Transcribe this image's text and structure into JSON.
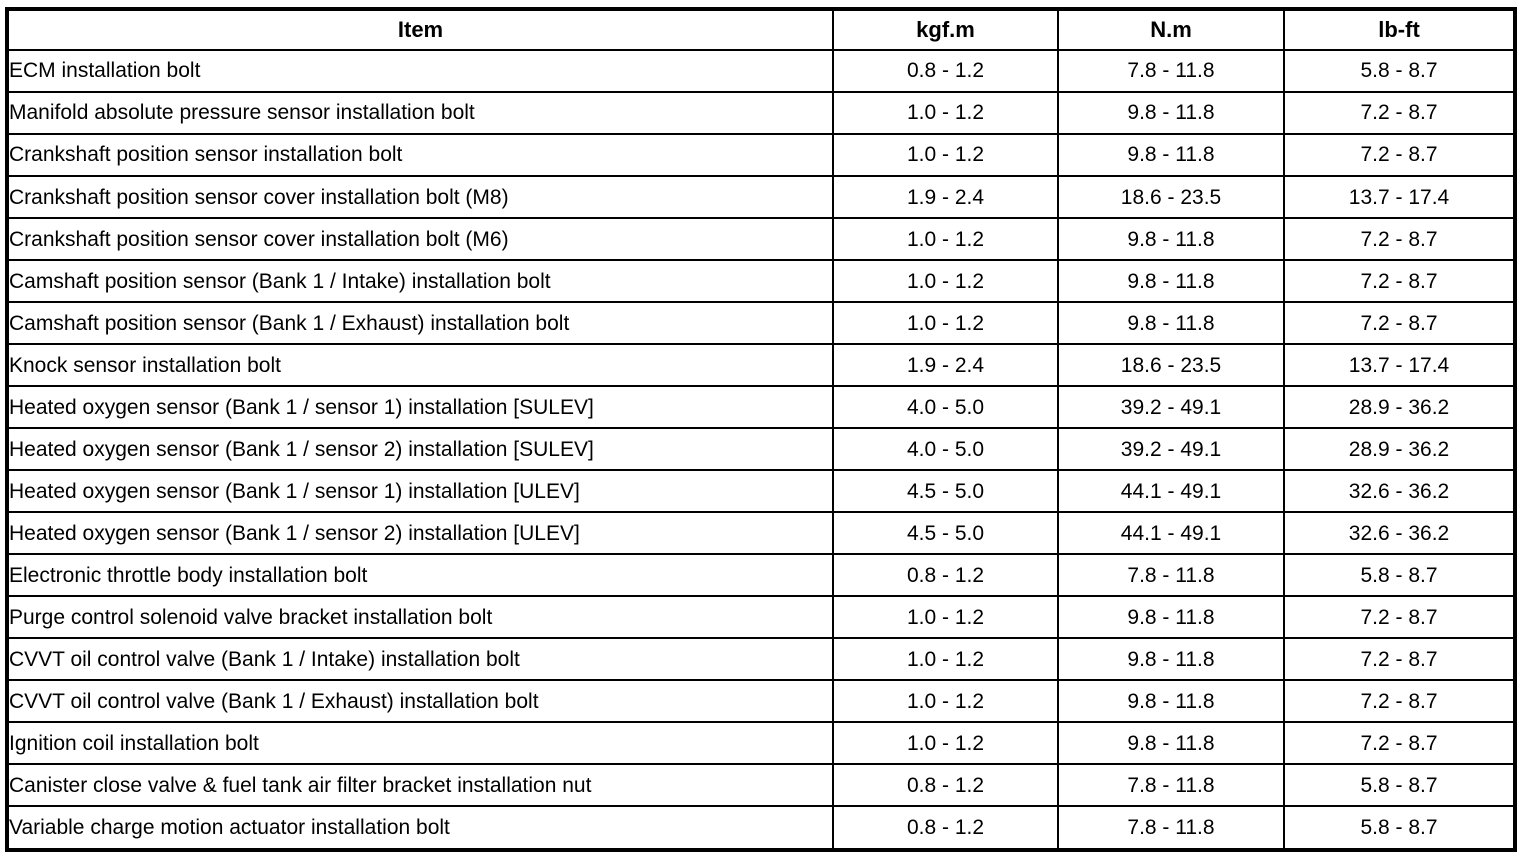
{
  "table": {
    "columns": [
      "Item",
      "kgf.m",
      "N.m",
      "lb-ft"
    ],
    "rows": [
      {
        "item": "ECM installation bolt",
        "kgf_m": "0.8 - 1.2",
        "n_m": "7.8 - 11.8",
        "lb_ft": "5.8 - 8.7"
      },
      {
        "item": "Manifold absolute pressure sensor installation bolt",
        "kgf_m": "1.0 - 1.2",
        "n_m": "9.8 - 11.8",
        "lb_ft": "7.2 - 8.7"
      },
      {
        "item": "Crankshaft position sensor installation bolt",
        "kgf_m": "1.0 - 1.2",
        "n_m": "9.8 - 11.8",
        "lb_ft": "7.2 - 8.7"
      },
      {
        "item": "Crankshaft position sensor cover installation bolt (M8)",
        "kgf_m": "1.9 - 2.4",
        "n_m": "18.6 - 23.5",
        "lb_ft": "13.7 - 17.4"
      },
      {
        "item": "Crankshaft position sensor cover installation bolt (M6)",
        "kgf_m": "1.0 - 1.2",
        "n_m": "9.8 - 11.8",
        "lb_ft": "7.2 - 8.7"
      },
      {
        "item": "Camshaft position sensor (Bank 1 / Intake) installation bolt",
        "kgf_m": "1.0 - 1.2",
        "n_m": "9.8 - 11.8",
        "lb_ft": "7.2 - 8.7"
      },
      {
        "item": "Camshaft position sensor (Bank 1 / Exhaust) installation bolt",
        "kgf_m": "1.0 - 1.2",
        "n_m": "9.8 - 11.8",
        "lb_ft": "7.2 - 8.7"
      },
      {
        "item": "Knock sensor installation bolt",
        "kgf_m": "1.9 - 2.4",
        "n_m": "18.6 - 23.5",
        "lb_ft": "13.7 - 17.4"
      },
      {
        "item": "Heated oxygen sensor (Bank 1 / sensor 1) installation [SULEV]",
        "kgf_m": "4.0 - 5.0",
        "n_m": "39.2 - 49.1",
        "lb_ft": "28.9 - 36.2"
      },
      {
        "item": "Heated oxygen sensor (Bank 1 / sensor 2) installation [SULEV]",
        "kgf_m": "4.0 - 5.0",
        "n_m": "39.2 - 49.1",
        "lb_ft": "28.9 - 36.2"
      },
      {
        "item": "Heated oxygen sensor (Bank 1 / sensor 1) installation [ULEV]",
        "kgf_m": "4.5 - 5.0",
        "n_m": "44.1 - 49.1",
        "lb_ft": "32.6 - 36.2"
      },
      {
        "item": "Heated oxygen sensor (Bank 1 / sensor 2) installation [ULEV]",
        "kgf_m": "4.5 - 5.0",
        "n_m": "44.1 - 49.1",
        "lb_ft": "32.6 - 36.2"
      },
      {
        "item": "Electronic throttle body installation bolt",
        "kgf_m": "0.8 - 1.2",
        "n_m": "7.8 - 11.8",
        "lb_ft": "5.8 - 8.7"
      },
      {
        "item": "Purge control solenoid valve bracket installation bolt",
        "kgf_m": "1.0 - 1.2",
        "n_m": "9.8 - 11.8",
        "lb_ft": "7.2 - 8.7"
      },
      {
        "item": "CVVT oil control valve (Bank 1 / Intake) installation bolt",
        "kgf_m": "1.0 - 1.2",
        "n_m": "9.8 - 11.8",
        "lb_ft": "7.2 - 8.7"
      },
      {
        "item": "CVVT oil control valve (Bank 1 / Exhaust) installation bolt",
        "kgf_m": "1.0 - 1.2",
        "n_m": "9.8 - 11.8",
        "lb_ft": "7.2 - 8.7"
      },
      {
        "item": "Ignition coil installation bolt",
        "kgf_m": "1.0 - 1.2",
        "n_m": "9.8 - 11.8",
        "lb_ft": "7.2 - 8.7"
      },
      {
        "item": "Canister close valve & fuel tank air filter bracket installation nut",
        "kgf_m": "0.8 - 1.2",
        "n_m": "7.8 - 11.8",
        "lb_ft": "5.8 - 8.7"
      },
      {
        "item": "Variable charge motion actuator installation bolt",
        "kgf_m": "0.8 - 1.2",
        "n_m": "7.8 - 11.8",
        "lb_ft": "5.8 - 8.7"
      }
    ],
    "colors": {
      "border": "#000000",
      "background": "#ffffff",
      "text": "#000000"
    }
  }
}
